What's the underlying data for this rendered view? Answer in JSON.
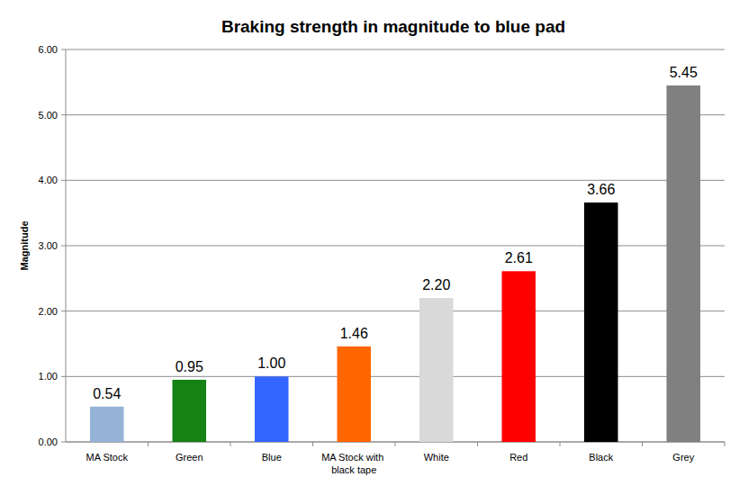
{
  "chart_data": {
    "type": "bar",
    "title": "Braking strength in magnitude to blue pad",
    "y_label": "Magnitude",
    "categories": [
      "MA Stock",
      "Green",
      "Blue",
      "MA Stock with black tape",
      "White",
      "Red",
      "Black",
      "Grey"
    ],
    "values": [
      0.54,
      0.95,
      1.0,
      1.46,
      2.2,
      2.61,
      3.66,
      5.45
    ],
    "value_labels": [
      "0.54",
      "0.95",
      "1.00",
      "1.46",
      "2.20",
      "2.61",
      "3.66",
      "5.45"
    ],
    "colors": [
      "#95b3d7",
      "#148214",
      "#3366ff",
      "#ff6600",
      "#d9d9d9",
      "#ff0000",
      "#000000",
      "#808080"
    ],
    "ylim": [
      0,
      6
    ],
    "yticks": [
      {
        "value": 0,
        "label": "0.00"
      },
      {
        "value": 1,
        "label": "1.00"
      },
      {
        "value": 2,
        "label": "2.00"
      },
      {
        "value": 3,
        "label": "3.00"
      },
      {
        "value": 4,
        "label": "4.00"
      },
      {
        "value": 5,
        "label": "5.00"
      },
      {
        "value": 6,
        "label": "6.00"
      }
    ],
    "grid": true,
    "data_labels": true
  }
}
